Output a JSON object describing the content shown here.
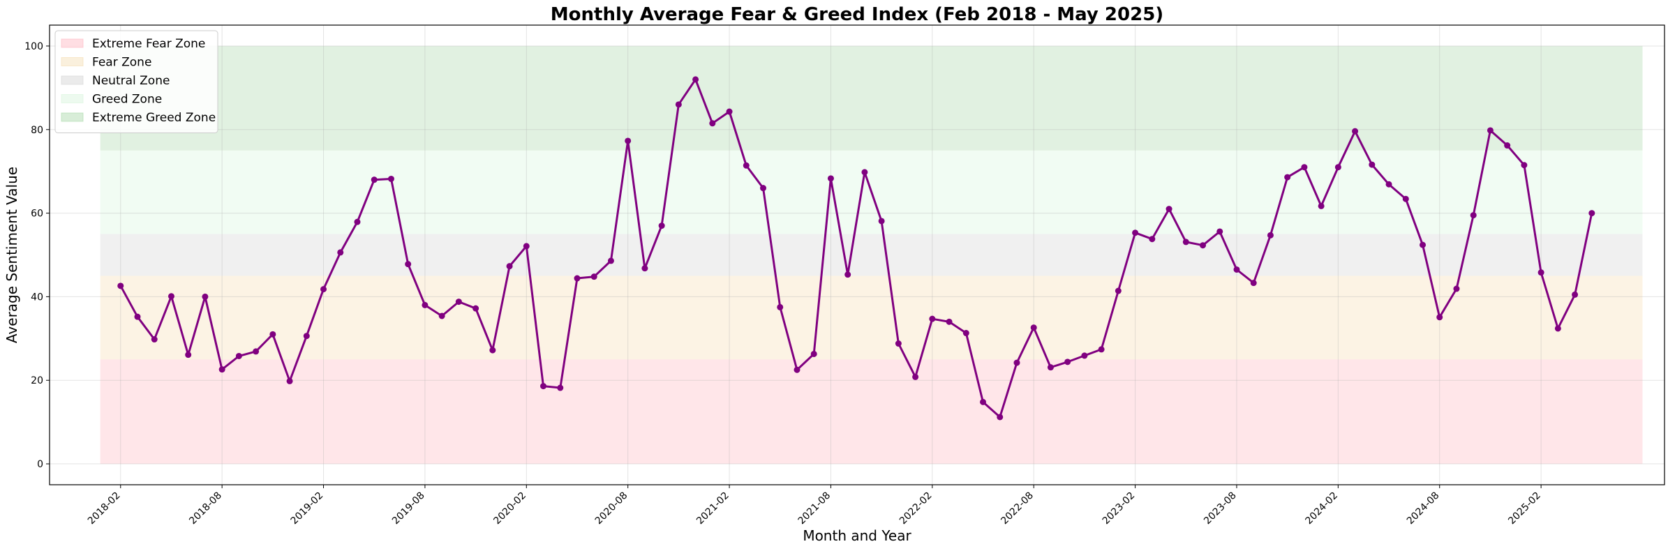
{
  "chart_data": {
    "type": "line",
    "title": "Monthly Average Fear & Greed Index (Feb 2018 - May 2025)",
    "xlabel": "Month and Year",
    "ylabel": "Average Sentiment Value",
    "ylim": [
      -5,
      105
    ],
    "yticks": [
      0,
      20,
      40,
      60,
      80,
      100
    ],
    "xticks": [
      "2018-02",
      "2018-08",
      "2019-02",
      "2019-08",
      "2020-02",
      "2020-08",
      "2021-02",
      "2021-08",
      "2022-02",
      "2022-08",
      "2023-02",
      "2023-08",
      "2024-02",
      "2024-08",
      "2025-02"
    ],
    "grid": true,
    "legend_position": "top-left",
    "line_color": "#800080",
    "zones": [
      {
        "name": "Extreme Fear Zone",
        "from": 0,
        "to": 25,
        "color": "#ffb6c1"
      },
      {
        "name": "Fear Zone",
        "from": 25,
        "to": 45,
        "color": "#f5deb3"
      },
      {
        "name": "Neutral Zone",
        "from": 45,
        "to": 55,
        "color": "#d3d3d3"
      },
      {
        "name": "Greed Zone",
        "from": 55,
        "to": 75,
        "color": "#d8f5dc"
      },
      {
        "name": "Extreme Greed Zone",
        "from": 75,
        "to": 100,
        "color": "#a9d8a9"
      }
    ],
    "x": [
      "2018-02",
      "2018-03",
      "2018-04",
      "2018-05",
      "2018-06",
      "2018-07",
      "2018-08",
      "2018-09",
      "2018-10",
      "2018-11",
      "2018-12",
      "2019-01",
      "2019-02",
      "2019-03",
      "2019-04",
      "2019-05",
      "2019-06",
      "2019-07",
      "2019-08",
      "2019-09",
      "2019-10",
      "2019-11",
      "2019-12",
      "2020-01",
      "2020-02",
      "2020-03",
      "2020-04",
      "2020-05",
      "2020-06",
      "2020-07",
      "2020-08",
      "2020-09",
      "2020-10",
      "2020-11",
      "2020-12",
      "2021-01",
      "2021-02",
      "2021-03",
      "2021-04",
      "2021-05",
      "2021-06",
      "2021-07",
      "2021-08",
      "2021-09",
      "2021-10",
      "2021-11",
      "2021-12",
      "2022-01",
      "2022-02",
      "2022-03",
      "2022-04",
      "2022-05",
      "2022-06",
      "2022-07",
      "2022-08",
      "2022-09",
      "2022-10",
      "2022-11",
      "2022-12",
      "2023-01",
      "2023-02",
      "2023-03",
      "2023-04",
      "2023-05",
      "2023-06",
      "2023-07",
      "2023-08",
      "2023-09",
      "2023-10",
      "2023-11",
      "2023-12",
      "2024-01",
      "2024-02",
      "2024-03",
      "2024-04",
      "2024-05",
      "2024-06",
      "2024-07",
      "2024-08",
      "2024-09",
      "2024-10",
      "2024-11",
      "2024-12",
      "2025-01",
      "2025-02",
      "2025-03",
      "2025-04",
      "2025-05"
    ],
    "values": [
      42.6,
      35.2,
      29.8,
      40.1,
      26.1,
      40.0,
      22.6,
      25.8,
      26.9,
      31.0,
      19.8,
      30.6,
      41.8,
      50.6,
      57.9,
      68.0,
      68.2,
      47.8,
      38.0,
      35.4,
      38.8,
      37.2,
      27.2,
      47.3,
      52.1,
      18.6,
      18.2,
      44.4,
      44.8,
      48.6,
      77.3,
      46.8,
      57.0,
      86.0,
      92.0,
      81.5,
      84.3,
      71.4,
      66.0,
      37.5,
      22.5,
      26.3,
      68.3,
      45.3,
      69.8,
      58.1,
      28.8,
      20.8,
      34.7,
      34.0,
      31.3,
      14.8,
      11.2,
      24.2,
      32.6,
      23.1,
      24.4,
      25.9,
      27.4,
      41.4,
      55.3,
      53.8,
      61.0,
      53.1,
      52.3,
      55.6,
      46.5,
      43.3,
      54.7,
      68.6,
      71.0,
      61.7,
      71.0,
      79.6,
      71.6,
      66.9,
      63.4,
      52.4,
      35.1,
      41.9,
      59.5,
      79.8,
      76.2,
      71.5,
      45.8,
      32.4,
      40.5,
      60.0
    ]
  }
}
